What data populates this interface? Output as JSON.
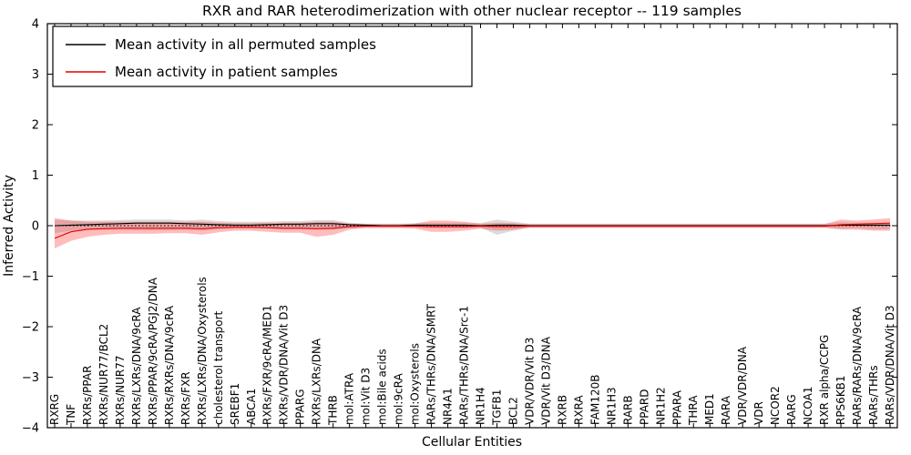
{
  "chart_data": {
    "type": "line",
    "title": "RXR and RAR heterodimerization with other nuclear receptor -- 119 samples",
    "xlabel": "Cellular Entities",
    "ylabel": "Inferred Activity",
    "ylim": [
      -4,
      4
    ],
    "yticks": [
      -4,
      -3,
      -2,
      -1,
      0,
      1,
      2,
      3,
      4
    ],
    "ytick_labels": [
      "−4",
      "−3",
      "−2",
      "−1",
      "0",
      "1",
      "2",
      "3",
      "4"
    ],
    "grid": false,
    "legend_position": "upper left",
    "zero_line": "dotted",
    "categories": [
      "RXRG",
      "TNF",
      "RXRs/PPAR",
      "RXRs/NUR77/BCL2",
      "RXRs/NUR77",
      "RXRs/LXRs/DNA/9cRA",
      "RXRs/PPAR/9cRA/PGJ2/DNA",
      "RXRs/RXRs/DNA/9cRA",
      "RXRs/FXR",
      "RXRs/LXRs/DNA/Oxysterols",
      "cholesterol transport",
      "SREBF1",
      "ABCA1",
      "RXRs/FXR/9cRA/MED1",
      "RXRs/VDR/DNA/Vit D3",
      "PPARG",
      "RXRs/LXRs/DNA",
      "THRB",
      "mol:ATRA",
      "mol:Vit D3",
      "mol:Bile acids",
      "mol:9cRA",
      "mol:Oxysterols",
      "RARs/THRs/DNA/SMRT",
      "NR4A1",
      "RARs/THRs/DNA/Src-1",
      "NR1H4",
      "TGFB1",
      "BCL2",
      "VDR/VDR/Vit D3",
      "VDR/Vit D3/DNA",
      "RXRB",
      "RXRA",
      "FAM120B",
      "NR1H3",
      "RARB",
      "PPARD",
      "NR1H2",
      "PPARA",
      "THRA",
      "MED1",
      "RARA",
      "VDR/VDR/DNA",
      "VDR",
      "NCOR2",
      "RARG",
      "NCOA1",
      "RXR alpha/CCPG",
      "RPS6KB1",
      "RARs/RARs/DNA/9cRA",
      "RARs/THRs",
      "RARs/VDR/DNA/Vit D3"
    ],
    "series": [
      {
        "name": "Mean activity in all permuted samples",
        "color": "#000000",
        "band_color": "#999999",
        "band_opacity": 0.35,
        "values": [
          0,
          0.01,
          0.02,
          0.03,
          0.04,
          0.05,
          0.05,
          0.05,
          0.04,
          0.03,
          0.02,
          0.01,
          0.01,
          0.02,
          0.03,
          0.03,
          0.04,
          0.04,
          0.02,
          0.01,
          0,
          0,
          0.01,
          0.01,
          0.01,
          0.01,
          0,
          0.01,
          0.01,
          0,
          0,
          0,
          0,
          0,
          0,
          0,
          0,
          0,
          0,
          0,
          0,
          0,
          0,
          0,
          0,
          0,
          0,
          0,
          0.01,
          0.01,
          0.01,
          0.01
        ],
        "band_low": [
          -0.15,
          -0.1,
          -0.08,
          -0.08,
          -0.08,
          -0.09,
          -0.09,
          -0.09,
          -0.08,
          -0.1,
          -0.07,
          -0.06,
          -0.06,
          -0.06,
          -0.07,
          -0.07,
          -0.08,
          -0.08,
          -0.05,
          -0.03,
          -0.03,
          -0.03,
          -0.04,
          -0.05,
          -0.05,
          -0.05,
          -0.04,
          -0.18,
          -0.1,
          -0.04,
          -0.04,
          -0.04,
          -0.04,
          -0.04,
          -0.04,
          -0.04,
          -0.04,
          -0.04,
          -0.04,
          -0.04,
          -0.04,
          -0.04,
          -0.04,
          -0.04,
          -0.04,
          -0.04,
          -0.04,
          -0.04,
          -0.06,
          -0.05,
          -0.07,
          -0.07
        ],
        "band_high": [
          0.12,
          0.1,
          0.1,
          0.1,
          0.11,
          0.12,
          0.12,
          0.12,
          0.1,
          0.12,
          0.09,
          0.08,
          0.08,
          0.08,
          0.09,
          0.09,
          0.11,
          0.11,
          0.06,
          0.04,
          0.04,
          0.04,
          0.05,
          0.06,
          0.06,
          0.06,
          0.05,
          0.12,
          0.08,
          0.04,
          0.04,
          0.04,
          0.04,
          0.04,
          0.04,
          0.04,
          0.04,
          0.04,
          0.04,
          0.04,
          0.04,
          0.04,
          0.04,
          0.04,
          0.04,
          0.04,
          0.04,
          0.04,
          0.07,
          0.06,
          0.06,
          0.06
        ]
      },
      {
        "name": "Mean activity in patient samples",
        "color": "#e60000",
        "band_color": "#ff2020",
        "band_opacity": 0.3,
        "values": [
          -0.25,
          -0.12,
          -0.07,
          -0.06,
          -0.05,
          -0.05,
          -0.05,
          -0.05,
          -0.05,
          -0.06,
          -0.04,
          -0.03,
          -0.03,
          -0.04,
          -0.05,
          -0.05,
          -0.06,
          -0.05,
          -0.02,
          -0.01,
          -0.01,
          -0.01,
          -0.01,
          -0.02,
          -0.02,
          -0.02,
          -0.01,
          -0.02,
          -0.02,
          -0.01,
          -0.01,
          -0.01,
          -0.01,
          -0.01,
          -0.01,
          -0.01,
          -0.01,
          -0.01,
          -0.01,
          -0.01,
          -0.01,
          -0.01,
          -0.01,
          -0.01,
          -0.01,
          -0.01,
          -0.01,
          -0.01,
          0.02,
          0.03,
          0.04,
          0.05
        ],
        "band_low": [
          -0.45,
          -0.3,
          -0.22,
          -0.18,
          -0.16,
          -0.16,
          -0.16,
          -0.15,
          -0.15,
          -0.18,
          -0.13,
          -0.1,
          -0.1,
          -0.12,
          -0.14,
          -0.14,
          -0.22,
          -0.18,
          -0.08,
          -0.05,
          -0.05,
          -0.05,
          -0.06,
          -0.12,
          -0.12,
          -0.1,
          -0.06,
          -0.1,
          -0.08,
          -0.04,
          -0.04,
          -0.04,
          -0.04,
          -0.04,
          -0.04,
          -0.04,
          -0.04,
          -0.04,
          -0.04,
          -0.04,
          -0.04,
          -0.04,
          -0.04,
          -0.04,
          -0.04,
          -0.04,
          -0.04,
          -0.04,
          -0.08,
          -0.08,
          -0.1,
          -0.1
        ],
        "band_high": [
          0.15,
          0.1,
          0.08,
          0.08,
          0.08,
          0.08,
          0.08,
          0.08,
          0.08,
          0.08,
          0.06,
          0.05,
          0.05,
          0.06,
          0.06,
          0.06,
          0.08,
          0.08,
          0.04,
          0.03,
          0.03,
          0.03,
          0.04,
          0.1,
          0.1,
          0.08,
          0.04,
          0.06,
          0.05,
          0.03,
          0.03,
          0.03,
          0.03,
          0.03,
          0.03,
          0.03,
          0.03,
          0.03,
          0.03,
          0.03,
          0.03,
          0.03,
          0.03,
          0.03,
          0.03,
          0.03,
          0.03,
          0.03,
          0.12,
          0.1,
          0.12,
          0.15
        ]
      }
    ]
  }
}
